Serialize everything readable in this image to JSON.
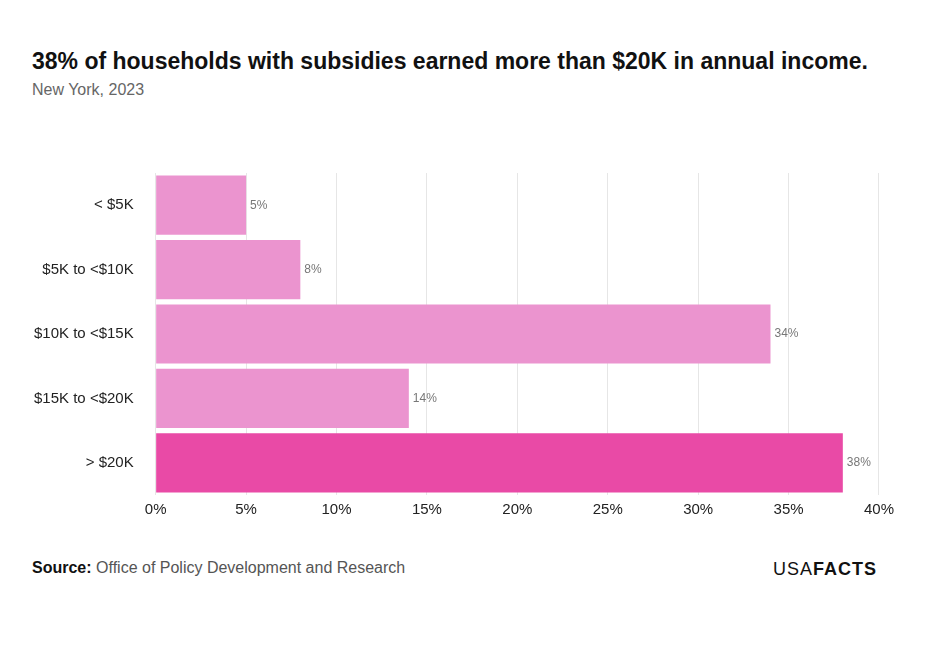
{
  "chart_data": {
    "type": "bar",
    "orientation": "horizontal",
    "title": "38% of households with subsidies earned more than $20K in annual income.",
    "subtitle": "New York, 2023",
    "source_label": "Source:",
    "source": "Office of Policy Development and Research",
    "logo": [
      "USA",
      "FACTS"
    ],
    "categories": [
      "< $5K",
      "$5K to <$10K",
      "$10K to <$15K",
      "$15K to <$20K",
      "> $20K"
    ],
    "values": [
      5,
      8,
      34,
      14,
      38
    ],
    "value_labels": [
      "5%",
      "8%",
      "34%",
      "14%",
      "38%"
    ],
    "colors": [
      "#eb94cf",
      "#eb94cf",
      "#eb94cf",
      "#eb94cf",
      "#e94aa6"
    ],
    "xlim": [
      0,
      40
    ],
    "xticks": [
      {
        "value": 0,
        "label": "0%"
      },
      {
        "value": 5,
        "label": "5%"
      },
      {
        "value": 10,
        "label": "10%"
      },
      {
        "value": 15,
        "label": "15%"
      },
      {
        "value": 20,
        "label": "20%"
      },
      {
        "value": 25,
        "label": "25%"
      },
      {
        "value": 30,
        "label": "30%"
      },
      {
        "value": 35,
        "label": "35%"
      },
      {
        "value": 40,
        "label": "40%"
      }
    ],
    "grid": true,
    "data_labels": true
  }
}
